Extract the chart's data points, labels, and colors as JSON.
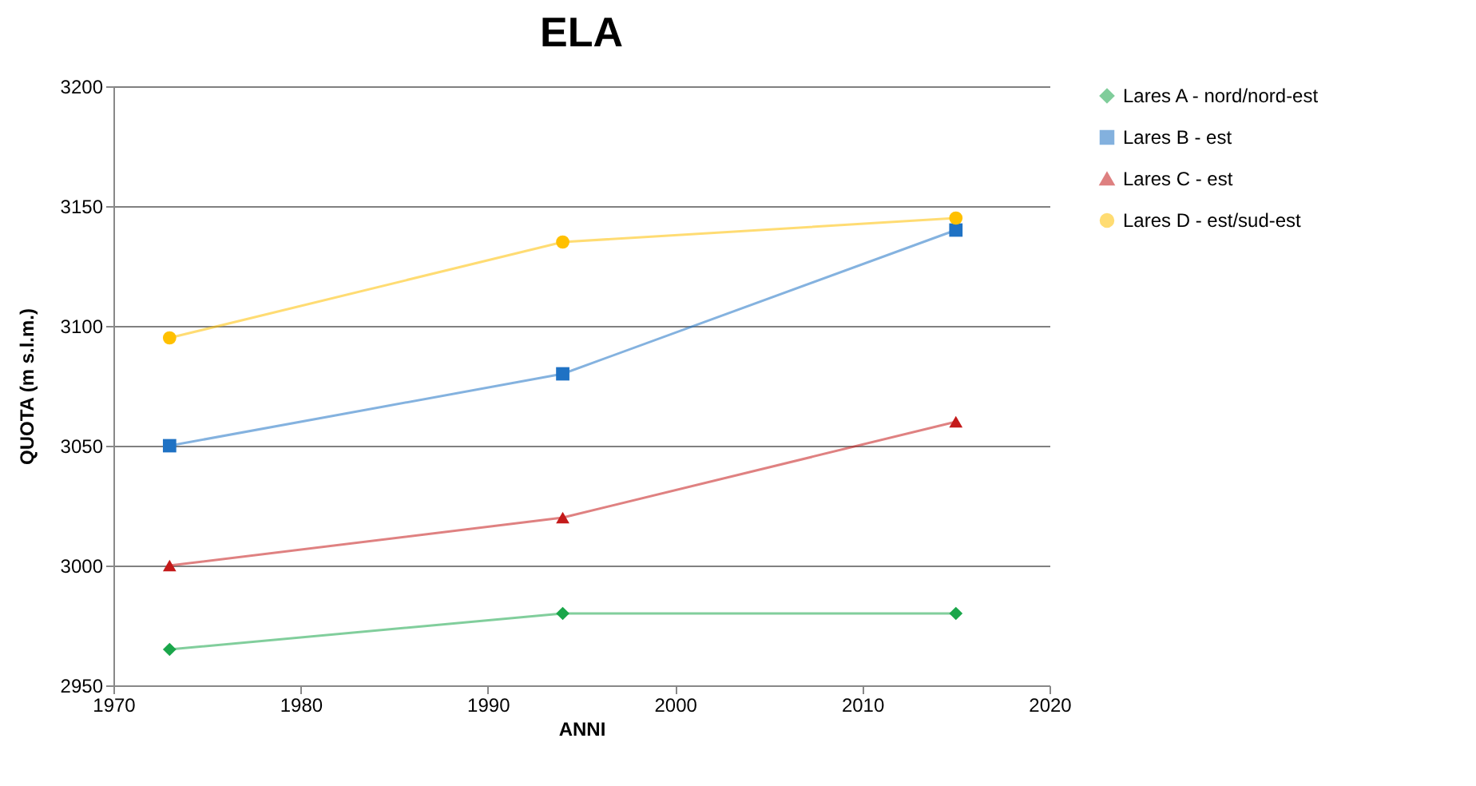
{
  "chart_data": {
    "type": "line",
    "title": "ELA",
    "xlabel": "ANNI",
    "ylabel": "QUOTA (m s.l.m.)",
    "xlim": [
      1970,
      2020
    ],
    "xticks": [
      1970,
      1980,
      1990,
      2000,
      2010,
      2020
    ],
    "ylim": [
      2950,
      3200
    ],
    "yticks": [
      2950,
      3000,
      3050,
      3100,
      3150,
      3200
    ],
    "grid": "y",
    "legend": "right",
    "series": [
      {
        "name": "Lares A  -  nord/nord-est",
        "color": "#1aa64a",
        "marker": "diamond",
        "x": [
          1973,
          1994,
          2015
        ],
        "values": [
          2965,
          2980,
          2980
        ]
      },
      {
        "name": "Lares B  -  est",
        "color": "#1f72c4",
        "marker": "square",
        "x": [
          1973,
          1994,
          2015
        ],
        "values": [
          3050,
          3080,
          3140
        ]
      },
      {
        "name": "Lares C  -  est",
        "color": "#c41a1a",
        "marker": "triangle",
        "x": [
          1973,
          1994,
          2015
        ],
        "values": [
          3000,
          3020,
          3060
        ]
      },
      {
        "name": "Lares D  -  est/sud-est",
        "color": "#ffc000",
        "marker": "circle",
        "x": [
          1973,
          1994,
          2015
        ],
        "values": [
          3095,
          3135,
          3145
        ]
      }
    ]
  }
}
